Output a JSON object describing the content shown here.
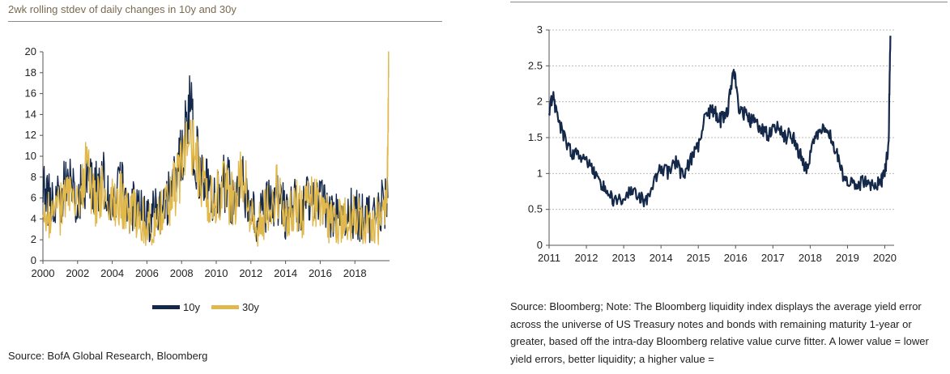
{
  "left": {
    "title": "2wk rolling stdev of daily changes in 10y and 30y",
    "source": "Source: BofA Global Research, Bloomberg"
  },
  "right": {
    "source": "Source: Bloomberg; Note: The Bloomberg liquidity index displays the average yield error across the universe of US Treasury notes and bonds with remaining maturity 1-year or greater, based off the intra-day Bloomberg relative value curve fitter. A lower value = lower yield errors, better liquidity; a higher value ="
  },
  "colors": {
    "series_10y": "#14284a",
    "series_30y": "#e0b84c",
    "grid": "#b8b8b8"
  },
  "chart_data": [
    {
      "type": "line",
      "title": "2wk rolling stdev of daily changes in 10y and 30y",
      "xlabel": "",
      "ylabel": "",
      "xlim": [
        2000,
        2020
      ],
      "ylim": [
        0,
        20
      ],
      "xticks": [
        "2000",
        "2002",
        "2004",
        "2006",
        "2008",
        "2010",
        "2012",
        "2014",
        "2016",
        "2018"
      ],
      "yticks": [
        "0",
        "2",
        "4",
        "6",
        "8",
        "10",
        "12",
        "14",
        "16",
        "18",
        "20"
      ],
      "legend": "bottom-center",
      "series": [
        {
          "name": "10y",
          "x": [
            2000.0,
            2000.5,
            2001.0,
            2001.5,
            2002.0,
            2002.5,
            2003.0,
            2003.5,
            2004.0,
            2004.5,
            2005.0,
            2005.5,
            2006.0,
            2006.5,
            2007.0,
            2007.5,
            2008.0,
            2008.5,
            2009.0,
            2009.5,
            2010.0,
            2010.5,
            2011.0,
            2011.5,
            2012.0,
            2012.5,
            2013.0,
            2013.5,
            2014.0,
            2014.5,
            2015.0,
            2015.5,
            2016.0,
            2016.5,
            2017.0,
            2017.5,
            2018.0,
            2018.5,
            2019.0,
            2019.5,
            2019.9
          ],
          "values": [
            7.5,
            5.0,
            6.0,
            9.0,
            5.5,
            8.0,
            6.5,
            7.5,
            6.0,
            7.0,
            5.0,
            5.5,
            4.0,
            4.5,
            5.0,
            7.0,
            10.0,
            14.0,
            8.5,
            7.0,
            6.5,
            7.5,
            6.0,
            8.0,
            4.5,
            4.0,
            5.5,
            6.0,
            4.5,
            5.5,
            5.0,
            6.0,
            5.5,
            4.5,
            4.0,
            4.5,
            4.5,
            4.0,
            4.0,
            5.0,
            6.0
          ]
        },
        {
          "name": "30y",
          "x": [
            2000.0,
            2000.5,
            2001.0,
            2001.5,
            2002.0,
            2002.5,
            2003.0,
            2003.5,
            2004.0,
            2004.5,
            2005.0,
            2005.5,
            2006.0,
            2006.5,
            2007.0,
            2007.5,
            2008.0,
            2008.5,
            2009.0,
            2009.5,
            2010.0,
            2010.5,
            2011.0,
            2011.5,
            2012.0,
            2012.5,
            2013.0,
            2013.5,
            2014.0,
            2014.5,
            2015.0,
            2015.5,
            2016.0,
            2016.5,
            2017.0,
            2017.5,
            2018.0,
            2018.5,
            2019.0,
            2019.5,
            2019.85,
            2019.95
          ],
          "values": [
            6.0,
            4.0,
            5.0,
            7.5,
            4.5,
            8.5,
            6.0,
            6.5,
            5.5,
            6.0,
            4.5,
            4.5,
            3.5,
            4.0,
            4.5,
            6.5,
            9.0,
            12.0,
            8.0,
            6.0,
            6.0,
            7.0,
            5.5,
            9.0,
            4.0,
            3.5,
            5.0,
            6.5,
            4.0,
            5.5,
            4.5,
            5.5,
            5.0,
            4.0,
            3.5,
            4.0,
            4.0,
            3.5,
            3.5,
            4.0,
            6.0,
            17.5
          ]
        }
      ]
    },
    {
      "type": "line",
      "title": "",
      "xlabel": "",
      "ylabel": "",
      "xlim": [
        2011,
        2020.25
      ],
      "ylim": [
        0,
        3
      ],
      "xticks": [
        "2011",
        "2012",
        "2013",
        "2014",
        "2015",
        "2016",
        "2017",
        "2018",
        "2019",
        "2020"
      ],
      "yticks": [
        "0",
        "0.5",
        "1",
        "1.5",
        "2",
        "2.5",
        "3"
      ],
      "grid": true,
      "series": [
        {
          "name": "Bloomberg liquidity index",
          "x": [
            2011.0,
            2011.1,
            2011.25,
            2011.4,
            2011.6,
            2011.8,
            2012.0,
            2012.2,
            2012.4,
            2012.6,
            2012.8,
            2013.0,
            2013.2,
            2013.4,
            2013.6,
            2013.8,
            2014.0,
            2014.2,
            2014.4,
            2014.6,
            2014.8,
            2015.0,
            2015.2,
            2015.4,
            2015.6,
            2015.8,
            2015.95,
            2016.1,
            2016.3,
            2016.5,
            2016.7,
            2016.9,
            2017.1,
            2017.3,
            2017.5,
            2017.7,
            2017.9,
            2018.1,
            2018.3,
            2018.5,
            2018.7,
            2018.9,
            2019.1,
            2019.3,
            2019.5,
            2019.7,
            2019.9,
            2020.0,
            2020.1,
            2020.15
          ],
          "values": [
            1.9,
            2.1,
            1.75,
            1.5,
            1.3,
            1.25,
            1.2,
            1.0,
            0.85,
            0.7,
            0.6,
            0.65,
            0.75,
            0.7,
            0.6,
            0.85,
            1.1,
            1.0,
            1.15,
            0.95,
            1.2,
            1.4,
            1.8,
            1.9,
            1.75,
            1.9,
            2.45,
            1.9,
            1.8,
            1.7,
            1.6,
            1.55,
            1.65,
            1.5,
            1.55,
            1.3,
            1.05,
            1.45,
            1.6,
            1.55,
            1.3,
            0.95,
            0.88,
            0.85,
            0.9,
            0.82,
            0.88,
            1.0,
            1.4,
            2.92
          ]
        }
      ]
    }
  ]
}
